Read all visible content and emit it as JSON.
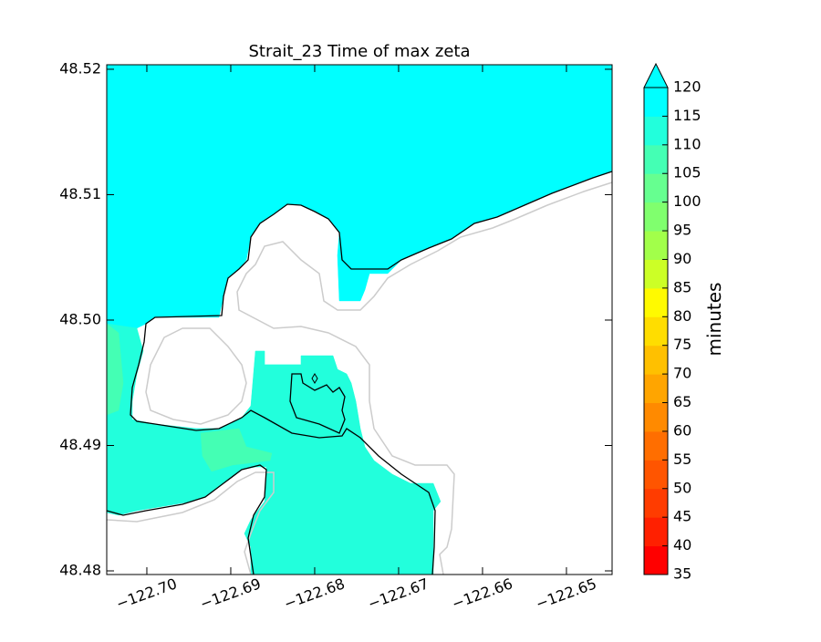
{
  "chart_data": {
    "type": "contourf",
    "title": "Strait_23 Time of max zeta",
    "xlim": [
      -122.70478,
      -122.64456
    ],
    "ylim": [
      48.47971,
      48.52036
    ],
    "xticks": [
      {
        "value": -122.7,
        "label": "−122.70"
      },
      {
        "value": -122.69,
        "label": "−122.69"
      },
      {
        "value": -122.68,
        "label": "−122.68"
      },
      {
        "value": -122.67,
        "label": "−122.67"
      },
      {
        "value": -122.66,
        "label": "−122.66"
      },
      {
        "value": -122.65,
        "label": "−122.65"
      }
    ],
    "yticks": [
      48.48,
      48.49,
      {
        "value": 48.5,
        "label": "48.50"
      },
      48.51,
      48.52
    ],
    "regions": [
      {
        "value": 117.5,
        "x": [
          -122.70478,
          -122.64456,
          -122.64456,
          -122.64684,
          -122.65173,
          -122.655,
          -122.65826,
          -122.66097,
          -122.66369,
          -122.66641,
          -122.66967,
          -122.6713,
          -122.67347,
          -122.67402,
          -122.67456,
          -122.67706,
          -122.67728,
          -122.67706,
          -122.67837,
          -122.68,
          -122.68163,
          -122.68326,
          -122.68489,
          -122.68652,
          -122.68761,
          -122.68815,
          -122.68902,
          -122.69032,
          -122.69087,
          -122.69141,
          -122.69902,
          -122.70011,
          -122.70119,
          -122.70478
        ],
        "y": [
          48.52036,
          48.52036,
          48.51186,
          48.51135,
          48.51011,
          48.50916,
          48.50822,
          48.50771,
          48.50647,
          48.50575,
          48.5048,
          48.50371,
          48.50371,
          48.5024,
          48.50153,
          48.50153,
          48.50516,
          48.50698,
          48.50807,
          48.50866,
          48.50916,
          48.50924,
          48.50844,
          48.50771,
          48.50662,
          48.5048,
          48.50407,
          48.50335,
          48.50189,
          48.50022,
          48.50022,
          48.49971,
          48.49935,
          48.49971
        ]
      },
      {
        "value": 112.5,
        "x": [
          -122.70478,
          -122.70119,
          -122.70043,
          -122.70119,
          -122.70174,
          -122.70174,
          -122.69902,
          -122.69413,
          -122.69141,
          -122.68869,
          -122.68761,
          -122.68706,
          -122.68597,
          -122.68597,
          -122.68163,
          -122.68163,
          -122.67782,
          -122.67728,
          -122.67619,
          -122.67565,
          -122.6751,
          -122.67456,
          -122.67402,
          -122.67293,
          -122.67076,
          -122.66858,
          -122.66587,
          -122.665,
          -122.66587,
          -122.66587,
          -122.68761,
          -122.68761,
          -122.68837,
          -122.68761,
          -122.68597,
          -122.68576,
          -122.68706,
          -122.68869,
          -122.69087,
          -122.69304,
          -122.69467,
          -122.69793,
          -122.70119,
          -122.70337,
          -122.70478
        ],
        "y": [
          48.49971,
          48.49935,
          48.49753,
          48.49571,
          48.49353,
          48.49207,
          48.49171,
          48.49135,
          48.49135,
          48.49222,
          48.49316,
          48.49753,
          48.49753,
          48.49644,
          48.49644,
          48.49716,
          48.49716,
          48.49607,
          48.49571,
          48.49498,
          48.49353,
          48.49135,
          48.48989,
          48.4888,
          48.48771,
          48.48698,
          48.48698,
          48.48553,
          48.4848,
          48.47971,
          48.47971,
          48.48189,
          48.48298,
          48.48407,
          48.48553,
          48.48829,
          48.48829,
          48.48807,
          48.48698,
          48.48589,
          48.48553,
          48.48516,
          48.4848,
          48.48444,
          48.48465
        ]
      },
      {
        "value": 107.5,
        "x": [
          -122.69358,
          -122.68902,
          -122.68815,
          -122.68511,
          -122.68532,
          -122.68978,
          -122.69228,
          -122.69337
        ],
        "y": [
          48.49098,
          48.49135,
          48.48989,
          48.48938,
          48.4888,
          48.48844,
          48.48793,
          48.48916
        ]
      },
      {
        "value": 107.5,
        "x": [
          -122.70478,
          -122.70337,
          -122.70282,
          -122.70337,
          -122.70478
        ],
        "y": [
          48.49971,
          48.49898,
          48.49498,
          48.4928,
          48.49244
        ]
      }
    ],
    "colorbar": {
      "label": "minutes",
      "extend": "max",
      "levels": [
        35,
        40,
        45,
        50,
        55,
        60,
        65,
        70,
        75,
        80,
        85,
        90,
        95,
        100,
        105,
        110,
        115,
        120
      ],
      "colors": [
        "#ff0000",
        "#ff2000",
        "#ff3c00",
        "#ff5500",
        "#ff6e00",
        "#ff8a00",
        "#ffa500",
        "#ffc000",
        "#ffdd00",
        "#fffa00",
        "#ccff26",
        "#a2ff4a",
        "#80ff6e",
        "#66ff90",
        "#44ffb4",
        "#22ffdc",
        "#00ffff"
      ]
    }
  }
}
